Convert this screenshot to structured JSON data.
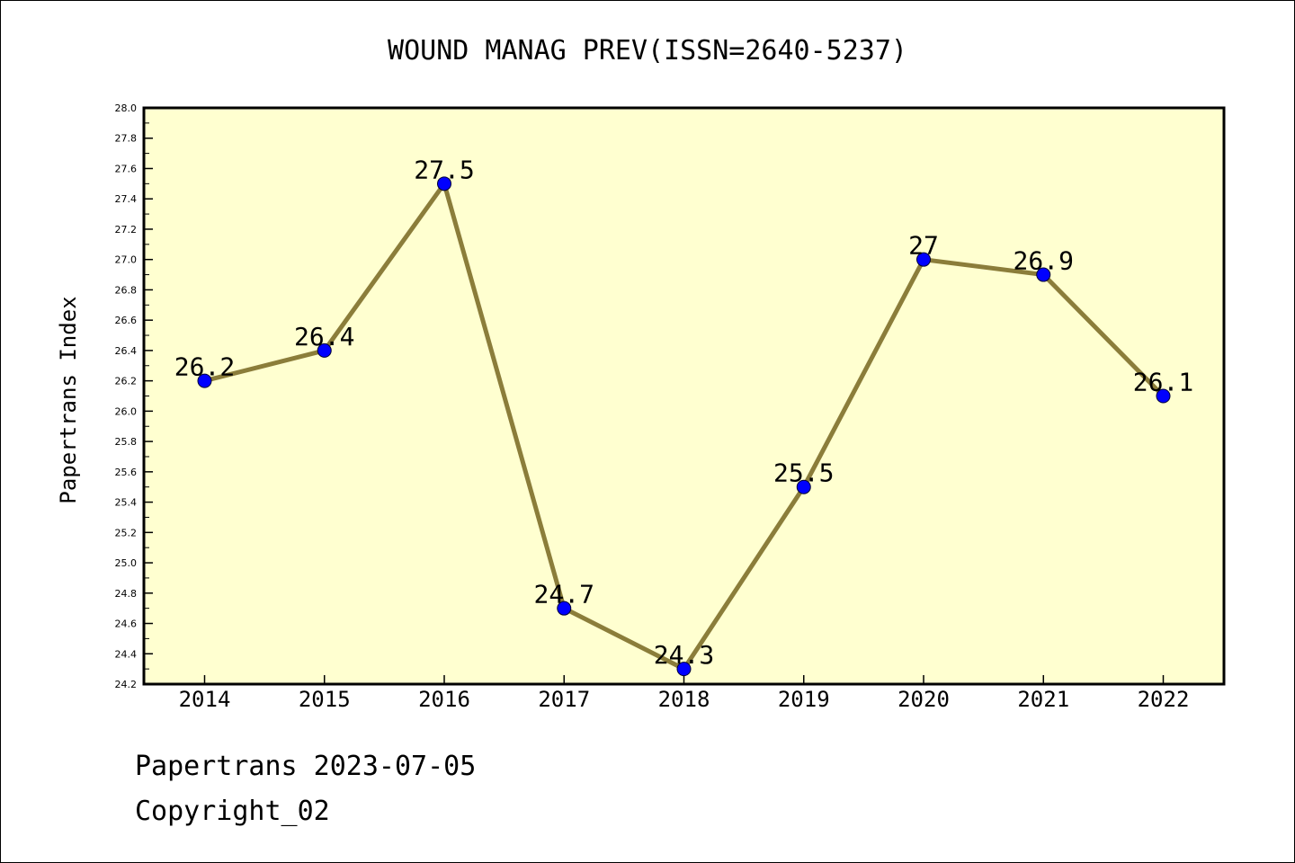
{
  "chart_data": {
    "type": "line",
    "title": "WOUND MANAG PREV(ISSN=2640-5237)",
    "xlabel": "",
    "ylabel": "Papertrans Index",
    "categories": [
      "2014",
      "2015",
      "2016",
      "2017",
      "2018",
      "2019",
      "2020",
      "2021",
      "2022"
    ],
    "series": [
      {
        "values": [
          26.2,
          26.4,
          27.5,
          24.7,
          24.3,
          25.5,
          27.0,
          26.9,
          26.1
        ],
        "labels": [
          "26.2",
          "26.4",
          "27.5",
          "24.7",
          "24.3",
          "25.5",
          "27",
          "26.9",
          "26.1"
        ]
      }
    ],
    "ylim": [
      24.2,
      28.0
    ],
    "yticks": [
      "24.2",
      "24.4",
      "24.6",
      "24.8",
      "25.0",
      "25.2",
      "25.4",
      "25.6",
      "25.8",
      "26.0",
      "26.2",
      "26.4",
      "26.6",
      "26.8",
      "27.0",
      "27.2",
      "27.4",
      "27.6",
      "27.8",
      "28.0"
    ],
    "grid": false,
    "legend": "none",
    "colors": {
      "plot_background": "#ffffd0",
      "line": "#8b7d3a",
      "marker": "#0000ff"
    }
  },
  "footer": {
    "line1": "Papertrans 2023-07-05",
    "line2": "Copyright_02"
  }
}
